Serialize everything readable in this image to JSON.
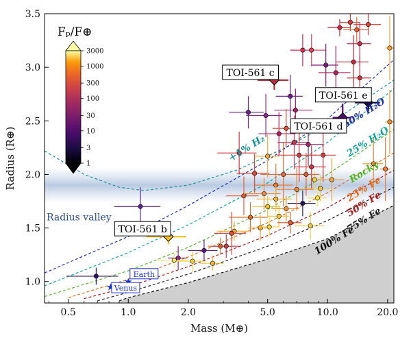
{
  "chart_data": {
    "type": "scatter",
    "xlabel": "Mass (M⊕)",
    "ylabel": "Radius (R⊕)",
    "xscale": "log",
    "xlim": [
      0.38,
      21.5
    ],
    "ylim": [
      0.8,
      3.5
    ],
    "x_ticks": [
      {
        "value": 0.5,
        "label": "0.5"
      },
      {
        "value": 1.0,
        "label": "1.0"
      },
      {
        "value": 2.0,
        "label": "2.0"
      },
      {
        "value": 5.0,
        "label": "5.0"
      },
      {
        "value": 10.0,
        "label": "10.0"
      },
      {
        "value": 20.0,
        "label": "20.0"
      }
    ],
    "y_ticks": [
      {
        "value": 1.0,
        "label": "1.0"
      },
      {
        "value": 1.5,
        "label": "1.5"
      },
      {
        "value": 2.0,
        "label": "2.0"
      },
      {
        "value": 2.5,
        "label": "2.5"
      },
      {
        "value": 3.0,
        "label": "3.0"
      },
      {
        "value": 3.5,
        "label": "3.5"
      }
    ],
    "colorbar": {
      "title": "Fₚ/F⊕",
      "scale": "log",
      "range": [
        1,
        3000
      ],
      "ticks": [
        {
          "value": 1,
          "label": "1"
        },
        {
          "value": 3,
          "label": "3"
        },
        {
          "value": 10,
          "label": "10"
        },
        {
          "value": 30,
          "label": "30"
        },
        {
          "value": 100,
          "label": "100"
        },
        {
          "value": 300,
          "label": "300"
        },
        {
          "value": 1000,
          "label": "1000"
        },
        {
          "value": 3000,
          "label": "3000"
        }
      ]
    },
    "radius_valley": {
      "label": "Radius valley",
      "center_radius": 1.9
    },
    "composition_curves": [
      {
        "label": "+1% H₂",
        "color": "#17939a",
        "label_at": {
          "x": 4.0,
          "y": 2.22
        },
        "points": [
          [
            0.38,
            2.22
          ],
          [
            0.6,
            2.0
          ],
          [
            0.9,
            1.88
          ],
          [
            1.2,
            1.85
          ],
          [
            2.0,
            1.9
          ],
          [
            3.5,
            2.04
          ],
          [
            6.0,
            2.24
          ],
          [
            10.0,
            2.46
          ],
          [
            21.5,
            2.88
          ]
        ]
      },
      {
        "label": "50% H₂O",
        "color": "#1d2fb0",
        "label_at": {
          "x": 15.5,
          "y": 2.55
        },
        "points": [
          [
            0.38,
            1.08
          ],
          [
            1.0,
            1.42
          ],
          [
            2.0,
            1.71
          ],
          [
            5.0,
            2.13
          ],
          [
            10.0,
            2.52
          ],
          [
            21.5,
            3.07
          ]
        ]
      },
      {
        "label": "25% H₂O",
        "color": "#11a599",
        "label_at": {
          "x": 16.2,
          "y": 2.28
        },
        "points": [
          [
            0.38,
            0.96
          ],
          [
            1.0,
            1.27
          ],
          [
            2.0,
            1.53
          ],
          [
            5.0,
            1.92
          ],
          [
            10.0,
            2.3
          ],
          [
            21.5,
            2.8
          ]
        ]
      },
      {
        "label": "Rocky",
        "color": "#52b82a",
        "label_at": {
          "x": 15.5,
          "y": 2.0
        },
        "points": [
          [
            0.38,
            0.86
          ],
          [
            1.0,
            1.1
          ],
          [
            2.0,
            1.32
          ],
          [
            5.0,
            1.67
          ],
          [
            10.0,
            2.0
          ],
          [
            21.5,
            2.42
          ]
        ]
      },
      {
        "label": "25% Fe",
        "color": "#e26a14",
        "label_at": {
          "x": 15.5,
          "y": 1.84
        },
        "points": [
          [
            0.5,
            0.85
          ],
          [
            1.0,
            1.02
          ],
          [
            2.0,
            1.23
          ],
          [
            5.0,
            1.55
          ],
          [
            10.0,
            1.83
          ],
          [
            21.5,
            2.2
          ]
        ]
      },
      {
        "label": "50% Fe",
        "color": "#b31818",
        "label_at": {
          "x": 15.5,
          "y": 1.7
        },
        "points": [
          [
            0.6,
            0.84
          ],
          [
            1.0,
            0.95
          ],
          [
            2.0,
            1.14
          ],
          [
            5.0,
            1.43
          ],
          [
            10.0,
            1.69
          ],
          [
            21.5,
            2.04
          ]
        ]
      },
      {
        "label": "75% Fe",
        "color": "#222222",
        "label_at": {
          "x": 15.5,
          "y": 1.55
        },
        "points": [
          [
            0.7,
            0.82
          ],
          [
            1.0,
            0.9
          ],
          [
            2.0,
            1.07
          ],
          [
            5.0,
            1.33
          ],
          [
            10.0,
            1.57
          ],
          [
            21.5,
            1.88
          ]
        ]
      },
      {
        "label": "100% Fe",
        "color": "#111111",
        "label_at": {
          "x": 11.0,
          "y": 1.36
        },
        "points": [
          [
            0.9,
            0.82
          ],
          [
            1.0,
            0.85
          ],
          [
            2.0,
            0.99
          ],
          [
            5.0,
            1.21
          ],
          [
            10.0,
            1.4
          ],
          [
            21.5,
            1.71
          ]
        ]
      }
    ],
    "named_planets": [
      {
        "label": "TOI-561 b",
        "x": 1.59,
        "y": 1.42,
        "xerr": 0.36,
        "yerr": 0.07,
        "color": "#f7c21a",
        "marker": "diamond",
        "label_at": {
          "x": 1.18,
          "y": 1.49
        }
      },
      {
        "label": "TOI-561 c",
        "x": 5.4,
        "y": 2.88,
        "xerr": 0.95,
        "yerr": 0.09,
        "color": "#c0303c",
        "marker": "diamond",
        "label_at": {
          "x": 4.1,
          "y": 2.95
        }
      },
      {
        "label": "TOI-561 d",
        "x": 11.9,
        "y": 2.53,
        "xerr": 1.3,
        "yerr": 0.13,
        "color": "#4e0f6a",
        "marker": "diamond",
        "label_at": {
          "x": 9.0,
          "y": 2.45
        }
      },
      {
        "label": "TOI-561 e",
        "x": 16.0,
        "y": 2.67,
        "xerr": 2.3,
        "yerr": 0.08,
        "color": "#1a0c48",
        "marker": "diamond",
        "label_at": {
          "x": 12.0,
          "y": 2.74
        }
      }
    ],
    "solar_system": [
      {
        "label": "Earth",
        "x": 1.0,
        "y": 1.0,
        "color": "#1a2ed6",
        "label_at": {
          "x": 1.2,
          "y": 1.07
        }
      },
      {
        "label": "Venus",
        "x": 0.815,
        "y": 0.95,
        "color": "#1a2ed6",
        "label_at": {
          "x": 0.97,
          "y": 0.94
        }
      }
    ],
    "other_planets": [
      {
        "x": 0.69,
        "y": 1.05,
        "xerr": 0.2,
        "yerr": 0.08,
        "color": "#2c1065"
      },
      {
        "x": 1.15,
        "y": 1.7,
        "xerr": 0.3,
        "yerr": 0.18,
        "color": "#5b2590"
      },
      {
        "x": 1.78,
        "y": 1.22,
        "xerr": 0.2,
        "yerr": 0.11,
        "color": "#8f2a8a"
      },
      {
        "x": 1.7,
        "y": 1.2,
        "xerr": 0.3,
        "yerr": 0.07,
        "color": "#ffe56a"
      },
      {
        "x": 2.1,
        "y": 1.19,
        "xerr": 0.35,
        "yerr": 0.1,
        "color": "#f4d23a"
      },
      {
        "x": 2.65,
        "y": 1.17,
        "xerr": 0.35,
        "yerr": 0.07,
        "color": "#f2b831"
      },
      {
        "x": 2.9,
        "y": 1.33,
        "xerr": 0.4,
        "yerr": 0.08,
        "color": "#e4722a"
      },
      {
        "x": 3.1,
        "y": 1.33,
        "xerr": 0.5,
        "yerr": 0.11,
        "color": "#c43a46"
      },
      {
        "x": 3.4,
        "y": 1.47,
        "xerr": 0.6,
        "yerr": 0.09,
        "color": "#f3b035"
      },
      {
        "x": 4.1,
        "y": 1.6,
        "xerr": 0.9,
        "yerr": 0.14,
        "color": "#e06a2c"
      },
      {
        "x": 4.6,
        "y": 1.5,
        "xerr": 0.6,
        "yerr": 0.12,
        "color": "#f2a83a"
      },
      {
        "x": 5.0,
        "y": 1.7,
        "xerr": 0.8,
        "yerr": 0.1,
        "color": "#f5c52a"
      },
      {
        "x": 5.1,
        "y": 1.51,
        "xerr": 0.6,
        "yerr": 0.09,
        "color": "#ffd43e"
      },
      {
        "x": 5.7,
        "y": 1.61,
        "xerr": 0.7,
        "yerr": 0.1,
        "color": "#f2c63a"
      },
      {
        "x": 6.2,
        "y": 1.68,
        "xerr": 1.0,
        "yerr": 0.12,
        "color": "#f08e2e"
      },
      {
        "x": 6.5,
        "y": 1.55,
        "xerr": 0.9,
        "yerr": 0.1,
        "color": "#e35a33"
      },
      {
        "x": 7.5,
        "y": 1.73,
        "xerr": 1.2,
        "yerr": 0.12,
        "color": "#1f1a5a"
      },
      {
        "x": 8.2,
        "y": 1.52,
        "xerr": 1.4,
        "yerr": 0.13,
        "color": "#f4ca3a"
      },
      {
        "x": 8.6,
        "y": 1.95,
        "xerr": 0.9,
        "yerr": 0.08,
        "color": "#f7d23a"
      },
      {
        "x": 9.2,
        "y": 1.87,
        "xerr": 1.3,
        "yerr": 0.12,
        "color": "#f5c33e"
      },
      {
        "x": 8.9,
        "y": 1.78,
        "xerr": 1.0,
        "yerr": 0.08,
        "color": "#ffe63a"
      },
      {
        "x": 4.3,
        "y": 2.01,
        "xerr": 0.8,
        "yerr": 0.18,
        "color": "#d8483e"
      },
      {
        "x": 3.8,
        "y": 1.8,
        "xerr": 0.7,
        "yerr": 0.18,
        "color": "#e85a30"
      },
      {
        "x": 5.5,
        "y": 1.9,
        "xerr": 1.2,
        "yerr": 0.2,
        "color": "#ef7a2a"
      },
      {
        "x": 6.0,
        "y": 2.0,
        "xerr": 1.4,
        "yerr": 0.3,
        "color": "#e96a36"
      },
      {
        "x": 7.0,
        "y": 1.86,
        "xerr": 1.5,
        "yerr": 0.2,
        "color": "#ec843a"
      },
      {
        "x": 3.6,
        "y": 2.2,
        "xerr": 0.8,
        "yerr": 0.2,
        "color": "#d7303c"
      },
      {
        "x": 5.7,
        "y": 2.38,
        "xerr": 1.2,
        "yerr": 0.2,
        "color": "#b21f5f"
      },
      {
        "x": 6.8,
        "y": 2.3,
        "xerr": 1.2,
        "yerr": 0.25,
        "color": "#c63a48"
      },
      {
        "x": 7.2,
        "y": 2.18,
        "xerr": 1.6,
        "yerr": 0.25,
        "color": "#cf3d3e"
      },
      {
        "x": 8.0,
        "y": 2.28,
        "xerr": 1.5,
        "yerr": 0.2,
        "color": "#9b2a70"
      },
      {
        "x": 4.9,
        "y": 2.55,
        "xerr": 1.0,
        "yerr": 0.2,
        "color": "#8a2486"
      },
      {
        "x": 4.0,
        "y": 2.58,
        "xerr": 0.8,
        "yerr": 0.15,
        "color": "#6a1e8a"
      },
      {
        "x": 6.5,
        "y": 2.73,
        "xerr": 1.0,
        "yerr": 0.2,
        "color": "#6b1f86"
      },
      {
        "x": 6.9,
        "y": 2.6,
        "xerr": 1.5,
        "yerr": 0.2,
        "color": "#a11f62"
      },
      {
        "x": 7.5,
        "y": 3.16,
        "xerr": 1.0,
        "yerr": 0.15,
        "color": "#c8204a"
      },
      {
        "x": 8.3,
        "y": 3.16,
        "xerr": 1.5,
        "yerr": 0.15,
        "color": "#e4405a"
      },
      {
        "x": 9.8,
        "y": 3.02,
        "xerr": 1.5,
        "yerr": 0.2,
        "color": "#7a1b7a"
      },
      {
        "x": 11.0,
        "y": 2.95,
        "xerr": 2.0,
        "yerr": 0.25,
        "color": "#b2205a"
      },
      {
        "x": 13.5,
        "y": 3.05,
        "xerr": 2.5,
        "yerr": 0.25,
        "color": "#c1283a"
      },
      {
        "x": 14.5,
        "y": 2.9,
        "xerr": 2.0,
        "yerr": 0.2,
        "color": "#d3303e"
      },
      {
        "x": 13.0,
        "y": 3.42,
        "xerr": 1.5,
        "yerr": 0.08,
        "color": "#e33a36"
      },
      {
        "x": 14.0,
        "y": 3.35,
        "xerr": 2.0,
        "yerr": 0.12,
        "color": "#e96236"
      },
      {
        "x": 16.0,
        "y": 3.4,
        "xerr": 2.5,
        "yerr": 0.1,
        "color": "#df3e3a"
      },
      {
        "x": 11.5,
        "y": 3.37,
        "xerr": 1.5,
        "yerr": 0.08,
        "color": "#d3283c"
      },
      {
        "x": 14.5,
        "y": 3.22,
        "xerr": 2.0,
        "yerr": 0.2,
        "color": "#c2304e"
      },
      {
        "x": 20.5,
        "y": 3.18,
        "xerr": 1.0,
        "yerr": 0.3,
        "color": "#f7a532"
      },
      {
        "x": 20.5,
        "y": 2.49,
        "xerr": 1.0,
        "yerr": 0.3,
        "color": "#f2902c"
      },
      {
        "x": 19.5,
        "y": 2.05,
        "xerr": 1.2,
        "yerr": 0.3,
        "color": "#f07a2e"
      },
      {
        "x": 17.0,
        "y": 2.1,
        "xerr": 2.0,
        "yerr": 0.25,
        "color": "#f38a30"
      },
      {
        "x": 8.3,
        "y": 2.07,
        "xerr": 1.5,
        "yerr": 0.2,
        "color": "#cf3544"
      },
      {
        "x": 9.5,
        "y": 2.18,
        "xerr": 1.5,
        "yerr": 0.25,
        "color": "#d23c3a"
      },
      {
        "x": 3.3,
        "y": 1.45,
        "xerr": 0.6,
        "yerr": 0.2,
        "color": "#e24a3e"
      },
      {
        "x": 7.8,
        "y": 2.0,
        "xerr": 1.3,
        "yerr": 0.2,
        "color": "#e06036"
      },
      {
        "x": 10.5,
        "y": 1.95,
        "xerr": 1.6,
        "yerr": 0.2,
        "color": "#f3a33c"
      },
      {
        "x": 4.8,
        "y": 1.82,
        "xerr": 1.0,
        "yerr": 0.15,
        "color": "#f08a36"
      },
      {
        "x": 2.4,
        "y": 1.29,
        "xerr": 0.4,
        "yerr": 0.1,
        "color": "#5a1e8a"
      },
      {
        "x": 5.0,
        "y": 2.17,
        "xerr": 0.7,
        "yerr": 0.2,
        "color": "#f4aa3a"
      },
      {
        "x": 5.5,
        "y": 1.77,
        "xerr": 1.1,
        "yerr": 0.12,
        "color": "#f6b83a"
      },
      {
        "x": 6.2,
        "y": 2.43,
        "xerr": 0.9,
        "yerr": 0.18,
        "color": "#e2503a"
      }
    ]
  }
}
